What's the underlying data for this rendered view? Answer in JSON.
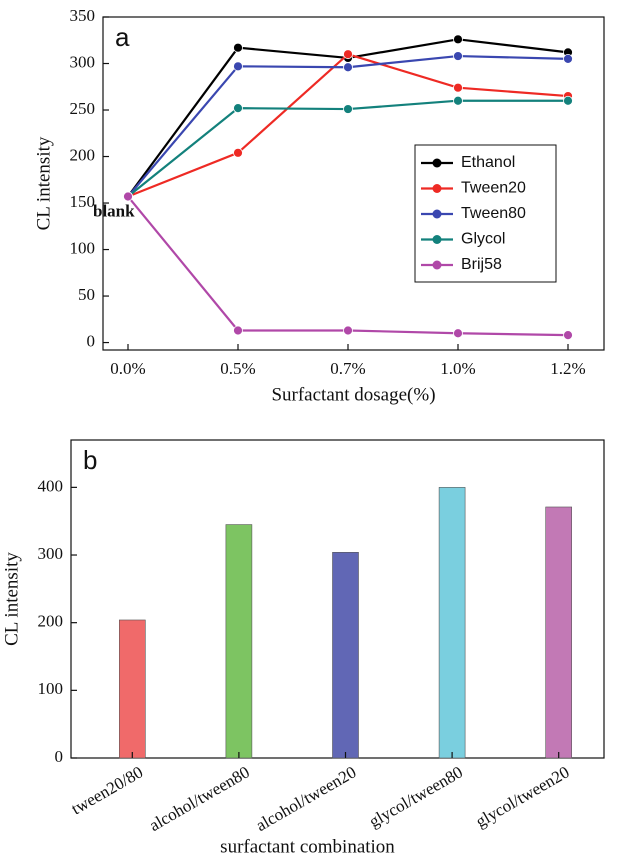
{
  "chart_data": [
    {
      "type": "line",
      "panel_label": "a",
      "annotation": "blank",
      "x_label": "Surfactant  dosage(%)",
      "y_label": "CL intensity",
      "categories": [
        "0.0%",
        "0.5%",
        "0.7%",
        "1.0%",
        "1.2%"
      ],
      "series": [
        {
          "name": "Ethanol",
          "color": "#000000",
          "values": [
            157,
            317,
            306,
            326,
            312
          ]
        },
        {
          "name": "Tween20",
          "color": "#ee2a24",
          "values": [
            157,
            204,
            310,
            274,
            265
          ]
        },
        {
          "name": "Tween80",
          "color": "#3a47b0",
          "values": [
            157,
            297,
            296,
            308,
            305
          ]
        },
        {
          "name": "Glycol",
          "color": "#13817c",
          "values": [
            157,
            252,
            251,
            260,
            260
          ]
        },
        {
          "name": "Brij58",
          "color": "#b048a8",
          "values": [
            157,
            13,
            13,
            10,
            8
          ]
        }
      ],
      "ylim": [
        -8,
        350
      ],
      "yticks": [
        0,
        50,
        100,
        150,
        200,
        250,
        300,
        350
      ],
      "legend": "right"
    },
    {
      "type": "bar",
      "panel_label": "b",
      "x_label": "surfactant combination",
      "y_label": "CL intensity",
      "categories": [
        "tween20/80",
        "alcohol/tween80",
        "alcohol/tween20",
        "glycol/tween80",
        "glycol/tween20"
      ],
      "values": [
        204,
        345,
        304,
        400,
        371
      ],
      "colors": [
        "#f06a6a",
        "#7dc462",
        "#6167b5",
        "#7acfdf",
        "#c279b5"
      ],
      "ylim": [
        0,
        470
      ],
      "yticks": [
        0,
        100,
        200,
        300,
        400
      ]
    }
  ]
}
